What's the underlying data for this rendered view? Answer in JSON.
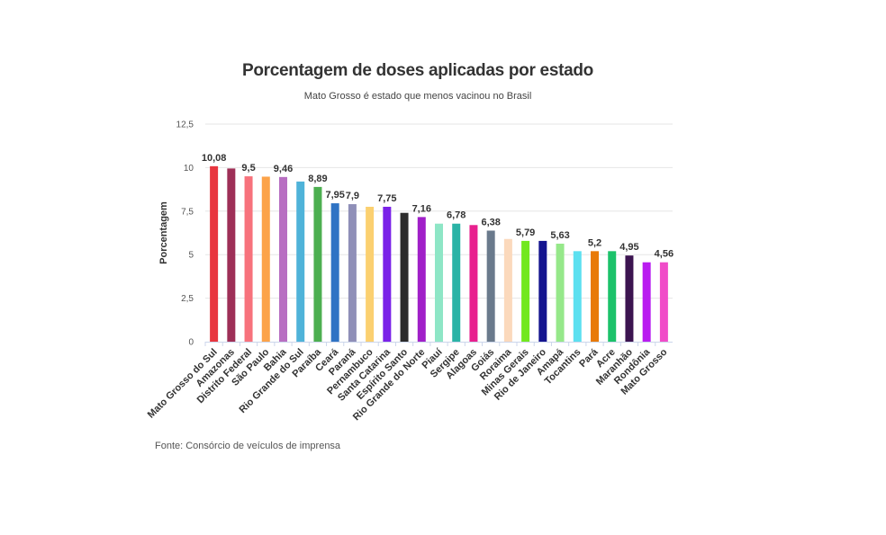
{
  "chart_data": {
    "type": "bar",
    "title": "Porcentagem de doses aplicadas por estado",
    "subtitle": "Mato Grosso é estado que menos vacinou no Brasil",
    "source": "Fonte: Consórcio de veículos de imprensa",
    "xlabel": "",
    "ylabel": "Porcentagem",
    "ylim": [
      0,
      12.5
    ],
    "yticks": [
      0,
      2.5,
      5,
      7.5,
      10,
      12.5
    ],
    "ytick_labels": [
      "0",
      "2,5",
      "5",
      "7,5",
      "10",
      "12,5"
    ],
    "grid": true,
    "categories": [
      "Mato Grosso do Sul",
      "Amazonas",
      "Distrito Federal",
      "São Paulo",
      "Bahia",
      "Rio Grande do Sul",
      "Paraíba",
      "Ceará",
      "Paraná",
      "Pernambuco",
      "Santa Catarina",
      "Espírito Santo",
      "Rio Grande do Norte",
      "Piauí",
      "Sergipe",
      "Alagoas",
      "Goiás",
      "Roraima",
      "Minas Gerais",
      "Rio de Janeiro",
      "Amapá",
      "Tocantins",
      "Pará",
      "Acre",
      "Maranhão",
      "Rondônia",
      "Mato Grosso"
    ],
    "values": [
      10.08,
      9.95,
      9.5,
      9.48,
      9.46,
      9.2,
      8.89,
      7.95,
      7.9,
      7.75,
      7.75,
      7.4,
      7.16,
      6.78,
      6.78,
      6.7,
      6.38,
      5.9,
      5.79,
      5.79,
      5.63,
      5.2,
      5.2,
      5.2,
      4.95,
      4.56,
      4.56
    ],
    "data_labels": [
      "10,08",
      "",
      "9,5",
      "",
      "9,46",
      "",
      "8,89",
      "7,95",
      "7,9",
      "",
      "7,75",
      "",
      "7,16",
      "",
      "6,78",
      "",
      "6,38",
      "",
      "5,79",
      "",
      "5,63",
      "",
      "5,2",
      "",
      "4,95",
      "",
      "4,56"
    ],
    "colors": [
      "#e8363f",
      "#9e2f57",
      "#f7727c",
      "#fca349",
      "#b86fc2",
      "#4fb3d9",
      "#4caf50",
      "#2f73c4",
      "#8f8fb8",
      "#fbd070",
      "#7a22e8",
      "#2b2b2b",
      "#a020c8",
      "#8ee6c6",
      "#2ab3a6",
      "#e8208e",
      "#6a7a8c",
      "#fbd9bc",
      "#72e81e",
      "#14148f",
      "#96e88a",
      "#5ce0f0",
      "#e87a08",
      "#1cc26a",
      "#3c1450",
      "#b91cf0",
      "#f04cc8"
    ]
  }
}
